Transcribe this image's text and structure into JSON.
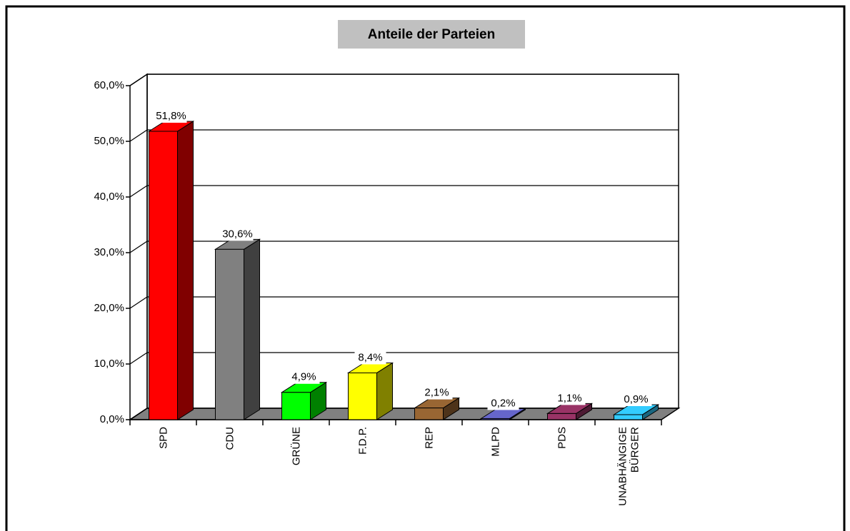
{
  "chart_data": {
    "type": "bar3d",
    "title": "Anteile der Parteien",
    "categories": [
      "SPD",
      "CDU",
      "GRÜNE",
      "F.D.P.",
      "REP",
      "MLPD",
      "PDS",
      "UNABHÄNGIGE BÜRGER"
    ],
    "values": [
      51.8,
      30.6,
      4.9,
      8.4,
      2.1,
      0.2,
      1.1,
      0.9
    ],
    "value_labels": [
      "51,8%",
      "30,6%",
      "4,9%",
      "8,4%",
      "2,1%",
      "0,2%",
      "1,1%",
      "0,9%"
    ],
    "colors": [
      "#ff0000",
      "#808080",
      "#00ff00",
      "#ffff00",
      "#996633",
      "#6666cc",
      "#993366",
      "#33ccff"
    ],
    "ylim": [
      0,
      60
    ],
    "yticks": [
      {
        "value": 0,
        "label": "0,0%"
      },
      {
        "value": 10,
        "label": "10,0%"
      },
      {
        "value": 20,
        "label": "20,0%"
      },
      {
        "value": 30,
        "label": "30,0%"
      },
      {
        "value": 40,
        "label": "40,0%"
      },
      {
        "value": 50,
        "label": "50,0%"
      },
      {
        "value": 60,
        "label": "60,0%"
      }
    ],
    "grid": true
  }
}
